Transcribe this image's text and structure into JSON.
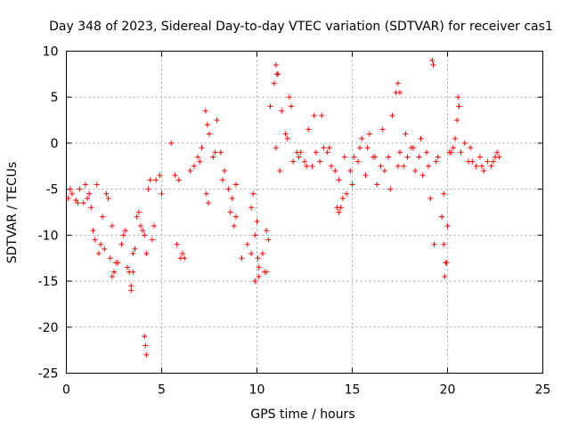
{
  "chart_data": {
    "type": "scatter",
    "title": "Day 348 of 2023, Sidereal Day-to-day VTEC variation (SDTVAR) for receiver cas1",
    "xlabel": "GPS time / hours",
    "ylabel": "SDTVAR / TECUs",
    "xlim": [
      0,
      25
    ],
    "ylim": [
      -25,
      10
    ],
    "xticks": [
      0,
      5,
      10,
      15,
      20,
      25
    ],
    "yticks": [
      -25,
      -20,
      -15,
      -10,
      -5,
      0,
      5,
      10
    ],
    "xtick_labels": [
      "0",
      "5",
      "10",
      "15",
      "20",
      "25"
    ],
    "ytick_labels": [
      "-25",
      "-20",
      "-15",
      "-10",
      "-5",
      "0",
      "5",
      "10"
    ],
    "grid": true,
    "marker": "+",
    "color": "#ff0000",
    "series": [
      {
        "name": "cas1",
        "x": [
          0.1,
          0.3,
          0.5,
          0.7,
          0.9,
          1.1,
          1.3,
          1.5,
          1.7,
          1.9,
          2.1,
          2.3,
          2.5,
          2.7,
          2.9,
          3.1,
          3.3,
          3.5,
          3.7,
          3.9,
          4.1,
          4.3,
          4.5,
          4.7,
          4.9,
          5.1,
          5.3,
          5.5,
          5.7,
          5.9,
          6.1,
          6.3,
          6.5,
          6.7,
          6.9,
          7.1,
          7.3,
          7.5,
          7.7,
          7.9,
          8.1,
          8.3,
          8.5,
          8.7,
          8.9,
          9.1,
          9.3,
          9.5,
          9.7,
          9.9,
          10.1,
          10.3,
          10.5,
          10.7,
          10.9,
          11.1,
          11.3,
          11.5,
          11.7,
          11.9,
          12.1,
          12.3,
          12.5,
          12.7,
          12.9,
          13.1,
          13.3,
          13.5,
          13.7,
          13.9,
          14.1,
          14.3,
          14.5,
          14.7,
          14.9,
          15.1,
          15.3,
          15.5,
          15.7,
          15.9,
          16.1,
          16.3,
          16.5,
          16.7,
          16.9,
          17.1,
          17.3,
          17.5,
          17.7,
          17.9,
          18.1,
          18.3,
          18.5,
          18.7,
          18.9,
          19.1,
          19.3,
          19.5,
          19.7,
          19.9,
          20.1,
          20.3,
          20.5,
          20.7,
          20.9,
          21.1,
          21.3,
          21.5,
          21.7,
          21.9,
          22.1,
          22.3,
          22.5,
          22.7,
          0.2,
          0.6,
          1.0,
          1.4,
          1.8,
          2.2,
          2.6,
          3.0,
          3.4,
          3.8,
          4.2,
          4.6,
          5.8,
          7.4,
          7.8,
          8.2,
          10.0,
          10.4,
          11.2,
          11.6,
          12.2,
          13.0,
          13.8,
          14.6,
          15.4,
          16.2,
          17.0,
          17.8,
          18.6,
          19.4,
          20.2,
          20.6,
          21.8,
          22.6,
          1.2,
          1.6,
          2.0,
          2.4,
          3.2,
          3.6,
          4.0,
          4.4,
          5.0,
          6.0,
          7.0,
          8.6,
          9.2,
          9.8,
          10.6,
          11.0,
          11.8,
          12.6,
          13.4,
          14.2,
          15.0,
          15.8,
          16.6,
          17.4,
          18.2,
          19.0,
          19.8,
          20.4,
          21.2,
          22.4,
          4.1,
          4.15,
          4.2,
          9.9,
          10.1,
          10.5,
          19.2,
          19.25,
          19.85,
          19.95,
          11.0,
          11.05,
          17.4,
          17.5,
          20.55,
          20.6,
          3.4,
          3.5,
          8.8,
          8.9,
          9.7,
          10.05,
          14.3,
          14.4,
          19.8,
          20.0,
          6.1,
          6.2,
          2.4,
          2.5,
          7.35,
          7.45
        ],
        "y": [
          -6.0,
          -5.5,
          -6.2,
          -5.0,
          -6.5,
          -6.0,
          -7.0,
          -10.5,
          -12.0,
          -8.0,
          -5.5,
          -12.5,
          -14.0,
          -13.0,
          -11.0,
          -9.5,
          -14.0,
          -12.0,
          -8.0,
          -9.0,
          -10.0,
          -5.0,
          -10.5,
          -4.0,
          -3.5,
          null,
          null,
          0.0,
          -3.5,
          -4.0,
          null,
          null,
          -3.0,
          -2.5,
          -1.5,
          -0.5,
          3.5,
          1.0,
          -1.5,
          2.5,
          -1.0,
          -3.0,
          -5.0,
          -6.0,
          -4.5,
          null,
          null,
          -11.0,
          -7.0,
          -10.0,
          -13.5,
          -12.0,
          -9.5,
          4.0,
          6.5,
          7.5,
          3.5,
          1.0,
          5.0,
          -2.0,
          -1.0,
          -1.0,
          -2.0,
          1.5,
          -2.5,
          -1.0,
          -2.0,
          -0.5,
          -1.0,
          -2.5,
          -3.0,
          -4.0,
          -6.0,
          -5.5,
          -3.0,
          -1.5,
          -2.0,
          0.5,
          -3.5,
          1.0,
          -1.5,
          -4.5,
          -2.5,
          -3.0,
          -1.5,
          3.0,
          5.5,
          -1.0,
          -2.5,
          -1.5,
          -0.5,
          -3.0,
          -1.5,
          -3.5,
          -1.0,
          -6.0,
          -11.0,
          -1.5,
          -8.0,
          -13.0,
          -1.0,
          -0.5,
          2.5,
          -1.0,
          0.0,
          -2.0,
          -2.0,
          -2.5,
          -1.5,
          -3.0,
          -2.0,
          -2.5,
          -1.5,
          -1.5,
          -5.0,
          -6.5,
          -4.5,
          -9.5,
          -11.0,
          -6.0,
          -13.0,
          -10.0,
          -16.0,
          -7.5,
          -12.0,
          -9.0,
          -11.0,
          2.0,
          -1.0,
          -4.0,
          -8.5,
          -14.0,
          -3.0,
          0.5,
          -1.5,
          3.0,
          -0.5,
          -1.5,
          -0.5,
          -1.5,
          -5.0,
          1.0,
          0.5,
          -2.0,
          -1.0,
          4.0,
          -2.5,
          -1.0,
          -5.5,
          -4.5,
          -11.5,
          -9.0,
          -13.5,
          -11.5,
          -9.5,
          -4.0,
          -5.5,
          -12.5,
          -2.0,
          -7.5,
          -12.5,
          -5.5,
          -10.5,
          -0.5,
          4.0,
          -2.5,
          3.0,
          -7.0,
          -4.5,
          -0.5,
          1.5,
          -2.5,
          -0.5,
          -2.5,
          -5.5,
          0.5,
          -0.5,
          -2.0,
          -21.0,
          -22.0,
          -23.0,
          -15.0,
          -14.5,
          -14.0,
          9.0,
          8.5,
          -14.5,
          -13.0,
          8.5,
          7.5,
          6.5,
          5.5,
          5.0,
          4.0,
          -15.5,
          -14.0,
          -9.0,
          -8.0,
          -12.0,
          -12.5,
          -7.5,
          -7.0,
          -11.0,
          -9.0,
          -12.0,
          -12.5,
          -14.5,
          -14.0,
          -5.5,
          -6.5
        ]
      }
    ]
  }
}
